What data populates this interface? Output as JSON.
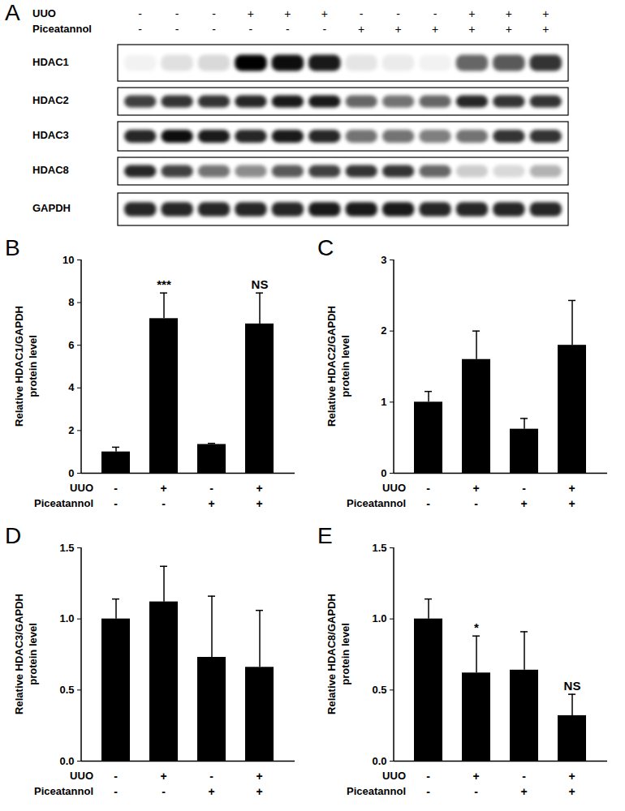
{
  "blot": {
    "panel": "A",
    "conditions": [
      {
        "name": "UUO",
        "signs": [
          "-",
          "-",
          "-",
          "+",
          "+",
          "+",
          "-",
          "-",
          "-",
          "+",
          "+",
          "+"
        ]
      },
      {
        "name": "Piceatannol",
        "signs": [
          "-",
          "-",
          "-",
          "-",
          "-",
          "-",
          "+",
          "+",
          "+",
          "+",
          "+",
          "+"
        ]
      }
    ],
    "rows": [
      {
        "name": "HDAC1",
        "intensities": [
          0.05,
          0.12,
          0.15,
          1,
          0.95,
          0.9,
          0.1,
          0.08,
          0.05,
          0.6,
          0.65,
          0.8
        ]
      },
      {
        "name": "HDAC2",
        "intensities": [
          0.75,
          0.8,
          0.8,
          0.85,
          0.9,
          0.9,
          0.6,
          0.55,
          0.6,
          0.85,
          0.8,
          0.8
        ]
      },
      {
        "name": "HDAC3",
        "intensities": [
          0.85,
          0.95,
          0.9,
          0.85,
          0.9,
          0.85,
          0.55,
          0.55,
          0.5,
          0.55,
          0.8,
          0.8
        ]
      },
      {
        "name": "HDAC8",
        "intensities": [
          0.85,
          0.75,
          0.55,
          0.45,
          0.65,
          0.75,
          0.8,
          0.8,
          0.6,
          0.2,
          0.15,
          0.3
        ]
      },
      {
        "name": "GAPDH",
        "intensities": [
          0.85,
          0.85,
          0.85,
          0.85,
          0.85,
          0.9,
          0.9,
          0.9,
          0.85,
          0.85,
          0.85,
          0.85
        ]
      }
    ]
  },
  "chart_data": [
    {
      "type": "bar",
      "panel": "B",
      "y_label": "Relative HDAC1/GAPDH\nprotein level",
      "categories": [
        null,
        null,
        null,
        null
      ],
      "values": [
        1.0,
        7.25,
        1.35,
        7.0
      ],
      "errors": [
        0.22,
        1.2,
        0.05,
        1.45
      ],
      "color": "#000000",
      "ylim": [
        0,
        10
      ],
      "yticks": [
        0,
        2,
        4,
        6,
        8,
        10
      ],
      "grid": false,
      "tick_labels": "y",
      "conditions": [
        {
          "name": "UUO",
          "signs": [
            "-",
            "+",
            "-",
            "+"
          ]
        },
        {
          "name": "Piceatannol",
          "signs": [
            "-",
            "-",
            "+",
            "+"
          ]
        }
      ],
      "annotations": [
        {
          "index": 1,
          "text": "***"
        },
        {
          "index": 3,
          "text": "NS"
        }
      ]
    },
    {
      "type": "bar",
      "panel": "C",
      "y_label": "Relative HDAC2/GAPDH\nprotein level",
      "categories": [
        null,
        null,
        null,
        null
      ],
      "values": [
        1.0,
        1.6,
        0.62,
        1.8
      ],
      "errors": [
        0.15,
        0.4,
        0.15,
        0.63
      ],
      "color": "#000000",
      "ylim": [
        0,
        3
      ],
      "yticks": [
        0,
        1,
        2,
        3
      ],
      "grid": false,
      "tick_labels": "y",
      "conditions": [
        {
          "name": "UUO",
          "signs": [
            "-",
            "+",
            "-",
            "+"
          ]
        },
        {
          "name": "Piceatannol",
          "signs": [
            "-",
            "-",
            "+",
            "+"
          ]
        }
      ],
      "annotations": []
    },
    {
      "type": "bar",
      "panel": "D",
      "y_label": "Relative HDAC3/GAPDH\nprotein level",
      "categories": [
        null,
        null,
        null,
        null
      ],
      "values": [
        1.0,
        1.12,
        0.73,
        0.66
      ],
      "errors": [
        0.14,
        0.25,
        0.43,
        0.4
      ],
      "color": "#000000",
      "ylim": [
        0,
        1.5
      ],
      "yticks": [
        {
          "value": 0,
          "label": "0.0"
        },
        {
          "value": 0.5,
          "label": "0.5"
        },
        {
          "value": 1,
          "label": "1.0"
        },
        {
          "value": 1.5,
          "label": "1.5"
        }
      ],
      "grid": false,
      "tick_labels": "y",
      "conditions": [
        {
          "name": "UUO",
          "signs": [
            "-",
            "+",
            "-",
            "+"
          ]
        },
        {
          "name": "Piceatannol",
          "signs": [
            "-",
            "-",
            "+",
            "+"
          ]
        }
      ],
      "annotations": []
    },
    {
      "type": "bar",
      "panel": "E",
      "y_label": "Relative HDAC8/GAPDH\nprotein level",
      "categories": [
        null,
        null,
        null,
        null
      ],
      "values": [
        1.0,
        0.62,
        0.64,
        0.32
      ],
      "errors": [
        0.14,
        0.26,
        0.27,
        0.15
      ],
      "color": "#000000",
      "ylim": [
        0,
        1.5
      ],
      "yticks": [
        {
          "value": 0,
          "label": "0.0"
        },
        {
          "value": 0.5,
          "label": "0.5"
        },
        {
          "value": 1,
          "label": "1.0"
        },
        {
          "value": 1.5,
          "label": "1.5"
        }
      ],
      "grid": false,
      "tick_labels": "y",
      "conditions": [
        {
          "name": "UUO",
          "signs": [
            "-",
            "+",
            "-",
            "+"
          ]
        },
        {
          "name": "Piceatannol",
          "signs": [
            "-",
            "-",
            "+",
            "+"
          ]
        }
      ],
      "annotations": [
        {
          "index": 1,
          "text": "*"
        },
        {
          "index": 3,
          "text": "NS"
        }
      ]
    }
  ]
}
